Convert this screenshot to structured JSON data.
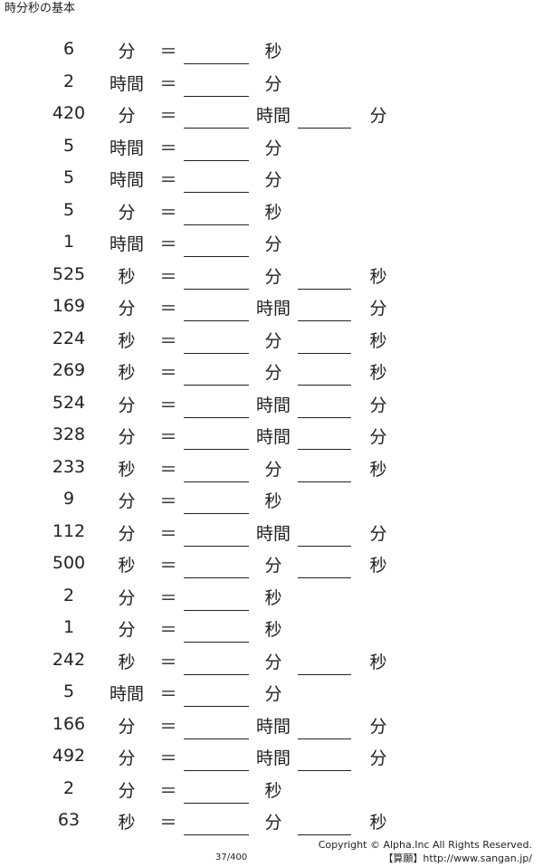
{
  "title": "時分秒の基本",
  "rows": [
    {
      "num": "6",
      "unit1": "分",
      "eq": "＝",
      "unit2": "秒",
      "unit3": ""
    },
    {
      "num": "2",
      "unit1": "時間",
      "eq": "＝",
      "unit2": "分",
      "unit3": ""
    },
    {
      "num": "420",
      "unit1": "分",
      "eq": "＝",
      "unit2": "時間",
      "unit3": "分"
    },
    {
      "num": "5",
      "unit1": "時間",
      "eq": "＝",
      "unit2": "分",
      "unit3": ""
    },
    {
      "num": "5",
      "unit1": "時間",
      "eq": "＝",
      "unit2": "分",
      "unit3": ""
    },
    {
      "num": "5",
      "unit1": "分",
      "eq": "＝",
      "unit2": "秒",
      "unit3": ""
    },
    {
      "num": "1",
      "unit1": "時間",
      "eq": "＝",
      "unit2": "分",
      "unit3": ""
    },
    {
      "num": "525",
      "unit1": "秒",
      "eq": "＝",
      "unit2": "分",
      "unit3": "秒"
    },
    {
      "num": "169",
      "unit1": "分",
      "eq": "＝",
      "unit2": "時間",
      "unit3": "分"
    },
    {
      "num": "224",
      "unit1": "秒",
      "eq": "＝",
      "unit2": "分",
      "unit3": "秒"
    },
    {
      "num": "269",
      "unit1": "秒",
      "eq": "＝",
      "unit2": "分",
      "unit3": "秒"
    },
    {
      "num": "524",
      "unit1": "分",
      "eq": "＝",
      "unit2": "時間",
      "unit3": "分"
    },
    {
      "num": "328",
      "unit1": "分",
      "eq": "＝",
      "unit2": "時間",
      "unit3": "分"
    },
    {
      "num": "233",
      "unit1": "秒",
      "eq": "＝",
      "unit2": "分",
      "unit3": "秒"
    },
    {
      "num": "9",
      "unit1": "分",
      "eq": "＝",
      "unit2": "秒",
      "unit3": ""
    },
    {
      "num": "112",
      "unit1": "分",
      "eq": "＝",
      "unit2": "時間",
      "unit3": "分"
    },
    {
      "num": "500",
      "unit1": "秒",
      "eq": "＝",
      "unit2": "分",
      "unit3": "秒"
    },
    {
      "num": "2",
      "unit1": "分",
      "eq": "＝",
      "unit2": "秒",
      "unit3": ""
    },
    {
      "num": "1",
      "unit1": "分",
      "eq": "＝",
      "unit2": "秒",
      "unit3": ""
    },
    {
      "num": "242",
      "unit1": "秒",
      "eq": "＝",
      "unit2": "分",
      "unit3": "秒"
    },
    {
      "num": "5",
      "unit1": "時間",
      "eq": "＝",
      "unit2": "分",
      "unit3": ""
    },
    {
      "num": "166",
      "unit1": "分",
      "eq": "＝",
      "unit2": "時間",
      "unit3": "分"
    },
    {
      "num": "492",
      "unit1": "分",
      "eq": "＝",
      "unit2": "時間",
      "unit3": "分"
    },
    {
      "num": "2",
      "unit1": "分",
      "eq": "＝",
      "unit2": "秒",
      "unit3": ""
    },
    {
      "num": "63",
      "unit1": "秒",
      "eq": "＝",
      "unit2": "分",
      "unit3": "秒"
    }
  ],
  "footer": {
    "copyright": "Copyright © Alpha.Inc All Rights Reserved.",
    "site": "【算願】http://www.sangan.jp/",
    "page_number": "37/400"
  }
}
